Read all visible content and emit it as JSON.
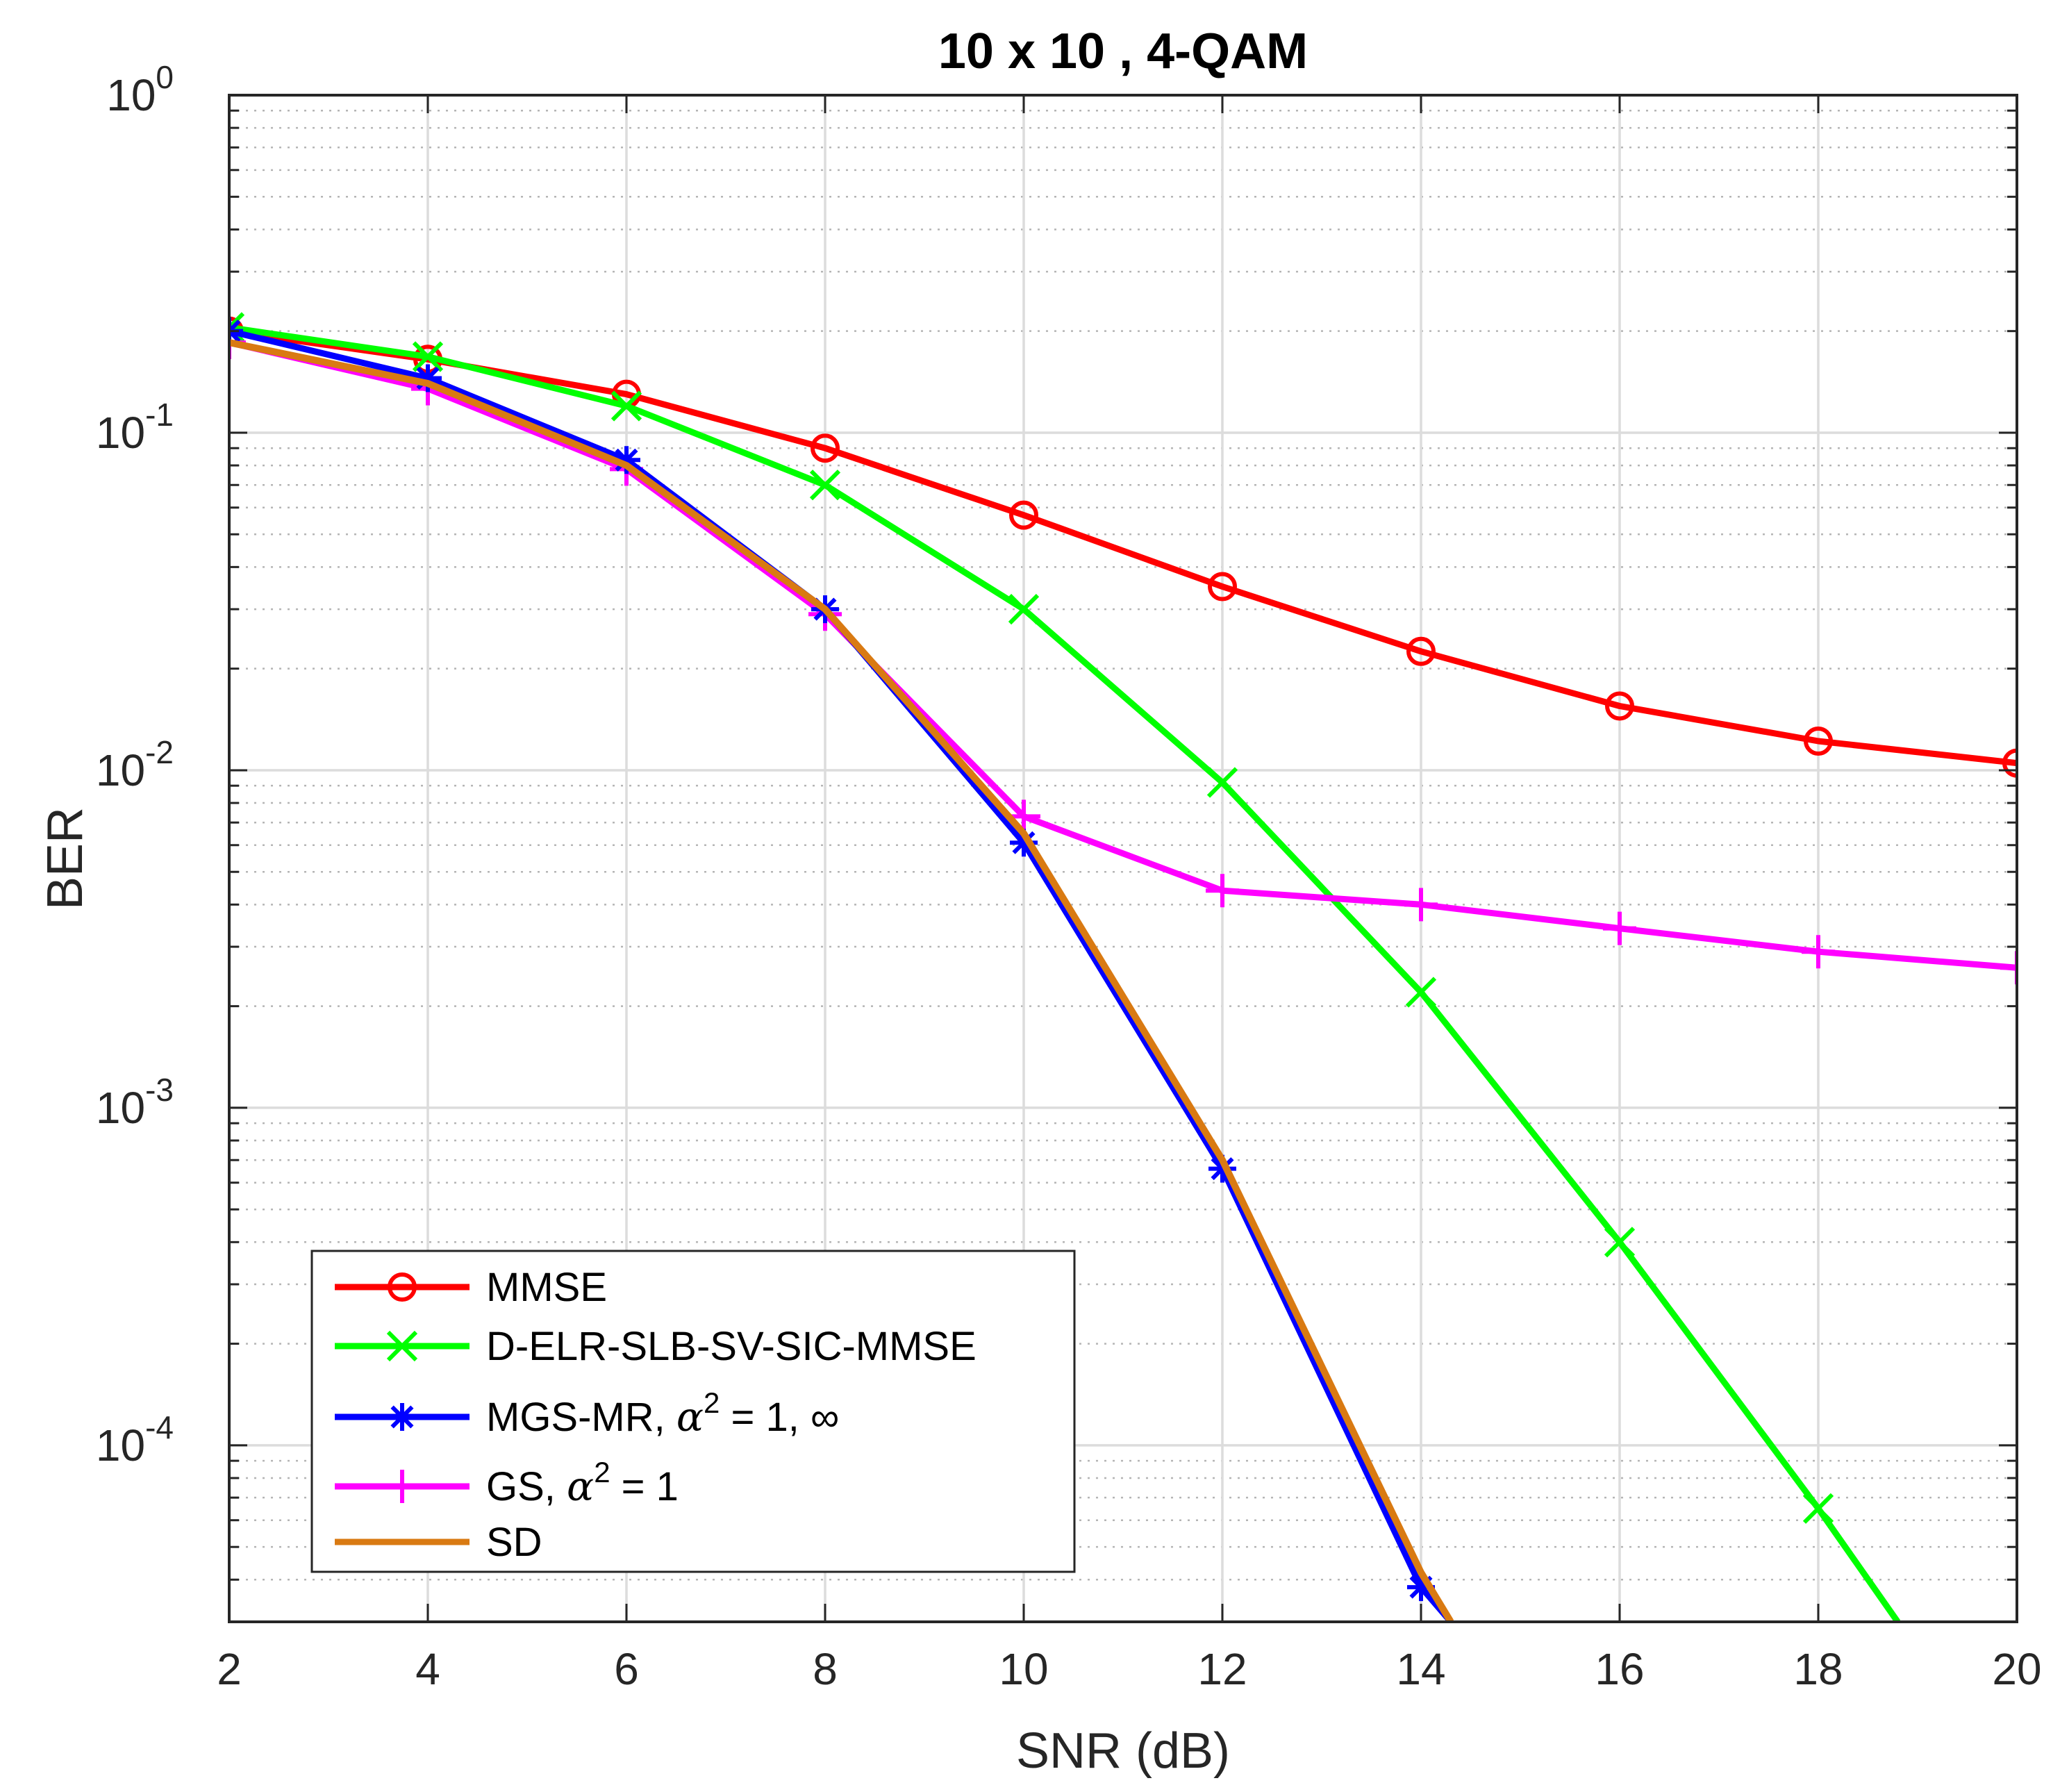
{
  "chart_data": {
    "type": "line",
    "title": "10 x 10 , 4-QAM",
    "xlabel": "SNR (dB)",
    "ylabel": "BER",
    "xlim": [
      2,
      20
    ],
    "ylim": [
      3e-05,
      1
    ],
    "yscale": "log",
    "grid": true,
    "legend_position": "bottom-left",
    "x_ticks": [
      2,
      4,
      6,
      8,
      10,
      12,
      14,
      16,
      18,
      20
    ],
    "x_tick_labels": [
      "2",
      "4",
      "6",
      "8",
      "10",
      "12",
      "14",
      "16",
      "18",
      "20"
    ],
    "y_ticks": [
      {
        "value": 1,
        "base": "10",
        "exp": "0"
      },
      {
        "value": 0.1,
        "base": "10",
        "exp": "-1"
      },
      {
        "value": 0.01,
        "base": "10",
        "exp": "-2"
      },
      {
        "value": 0.001,
        "base": "10",
        "exp": "-3"
      },
      {
        "value": 0.0001,
        "base": "10",
        "exp": "-4"
      }
    ],
    "series": [
      {
        "name": "MMSE",
        "legend_label": "MMSE",
        "color": "#ff0000",
        "marker": "circle",
        "x": [
          2,
          4,
          6,
          8,
          10,
          12,
          14,
          16,
          18,
          20
        ],
        "values": [
          0.2,
          0.165,
          0.13,
          0.09,
          0.057,
          0.035,
          0.0225,
          0.0155,
          0.0122,
          0.0105
        ]
      },
      {
        "name": "D-ELR-SLB-SV-SIC-MMSE",
        "legend_label": "D-ELR-SLB-SV-SIC-MMSE",
        "color": "#00ff00",
        "marker": "x",
        "x": [
          2,
          4,
          6,
          8,
          10,
          12,
          14,
          16,
          18,
          18.8
        ],
        "values": [
          0.205,
          0.168,
          0.12,
          0.07,
          0.03,
          0.0092,
          0.0022,
          0.0004,
          6.5e-05,
          3e-05
        ]
      },
      {
        "name": "MGS-MR",
        "legend_label": "MGS-MR, ",
        "legend_suffix": " = 1, ∞",
        "color": "#0000ff",
        "marker": "asterisk",
        "x": [
          2,
          4,
          6,
          8,
          10,
          12,
          14,
          14.3
        ],
        "values": [
          0.2,
          0.145,
          0.083,
          0.03,
          0.0061,
          0.00066,
          3.8e-05,
          3e-05
        ]
      },
      {
        "name": "GS",
        "legend_label": "GS, ",
        "legend_suffix": " = 1",
        "color": "#ff00ff",
        "marker": "plus",
        "x": [
          2,
          4,
          6,
          8,
          10,
          12,
          14,
          16,
          18,
          20
        ],
        "values": [
          0.185,
          0.135,
          0.078,
          0.029,
          0.0073,
          0.0044,
          0.004,
          0.0034,
          0.0029,
          0.0026
        ]
      },
      {
        "name": "SD",
        "legend_label": "SD",
        "color": "#d97a12",
        "marker": "none",
        "x": [
          2,
          4,
          6,
          8,
          10,
          12,
          14,
          14.3
        ],
        "values": [
          0.185,
          0.14,
          0.08,
          0.03,
          0.0065,
          0.0007,
          4.2e-05,
          3e-05
        ]
      }
    ],
    "legend_symbol": {
      "alpha": "α",
      "sup": "2"
    }
  }
}
